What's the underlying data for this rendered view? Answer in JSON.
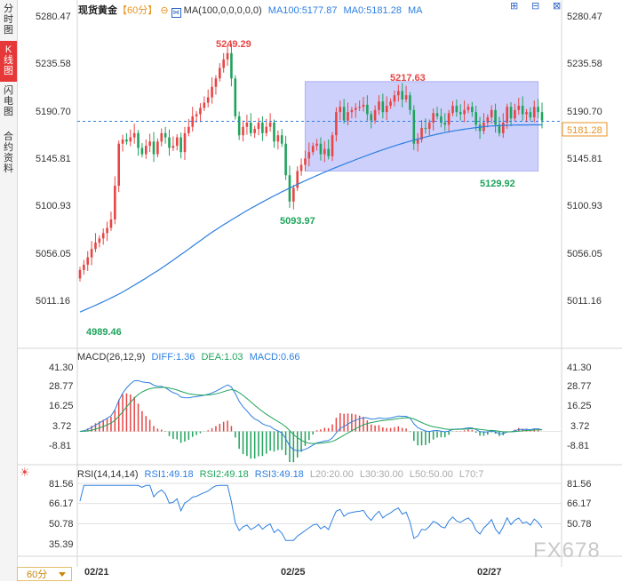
{
  "sidebar": {
    "tabs": [
      {
        "label": "分时图",
        "active": false
      },
      {
        "label": "K线图",
        "active": true
      },
      {
        "label": "闪电图",
        "active": false
      },
      {
        "label": "合约资料",
        "active": false
      }
    ],
    "period_button": "60分"
  },
  "header": {
    "symbol": "现货黄金",
    "period": "【60分】",
    "ma_label": "MA(100,0,0,0,0,0)",
    "ma100": "MA100:5177.87",
    "ma0": "MA0:5181.28",
    "ma_extra": "MA"
  },
  "toolbar_icons": [
    "grid-icon",
    "collapse-icon",
    "minimize-icon",
    "close-icon"
  ],
  "macd_header": {
    "label": "MACD(26,12,9)",
    "diff": "DIFF:1.36",
    "dea": "DEA:1.03",
    "macd": "MACD:0.66"
  },
  "rsi_header": {
    "label": "RSI(14,14,14)",
    "rsi1": "RSI1:49.18",
    "rsi2": "RSI2:49.18",
    "rsi3": "RSI3:49.18",
    "l20": "L20:20.00",
    "l30": "L30:30.00",
    "l50": "L50:50.00",
    "l70": "L70:7"
  },
  "price_badge": "5181.28",
  "annotations": {
    "high": "5249.29",
    "high2": "5217.63",
    "low_start": "4989.46",
    "low_mid": "5093.97",
    "low_end": "5129.92"
  },
  "watermark": "FX678",
  "colors": {
    "up": "#e84545",
    "down": "#1fa35c",
    "ma100": "#2d7fe0",
    "box": "#cdd0fb",
    "dotted": "#2d7fe0",
    "badge": "#e8921e"
  },
  "chart_data": [
    {
      "type": "candlestick",
      "title": "",
      "y_ticks": [
        "5280.47",
        "5235.58",
        "5190.70",
        "5145.81",
        "5100.93",
        "5056.05",
        "5011.16"
      ],
      "ylim": [
        4980,
        5282
      ],
      "x_ticks": [
        "02/21",
        "02/25",
        "02/27"
      ],
      "current_price": 5181.28,
      "close": [
        5040,
        5045,
        5052,
        5060,
        5066,
        5070,
        5075,
        5080,
        5088,
        5120,
        5160,
        5164,
        5162,
        5166,
        5170,
        5156,
        5150,
        5158,
        5162,
        5150,
        5162,
        5170,
        5166,
        5156,
        5158,
        5166,
        5152,
        5170,
        5176,
        5186,
        5188,
        5194,
        5199,
        5204,
        5214,
        5222,
        5232,
        5240,
        5246,
        5222,
        5186,
        5168,
        5176,
        5180,
        5170,
        5174,
        5180,
        5170,
        5176,
        5180,
        5162,
        5168,
        5160,
        5130,
        5105,
        5118,
        5134,
        5140,
        5146,
        5152,
        5158,
        5160,
        5150,
        5155,
        5148,
        5168,
        5190,
        5195,
        5182,
        5190,
        5192,
        5194,
        5195,
        5197,
        5188,
        5182,
        5192,
        5200,
        5190,
        5196,
        5200,
        5206,
        5210,
        5202,
        5206,
        5192,
        5160,
        5164,
        5175,
        5174,
        5180,
        5189,
        5186,
        5180,
        5178,
        5189,
        5196,
        5190,
        5188,
        5192,
        5195,
        5190,
        5178,
        5172,
        5180,
        5185,
        5192,
        5178,
        5170,
        5180,
        5195,
        5184,
        5192,
        5196,
        5188,
        5190,
        5185,
        5195,
        5190,
        5182
      ],
      "ma100": [
        5000,
        5001.6,
        5003.2,
        5004.8,
        5006.4,
        5008.1,
        5009.8,
        5011.6,
        5013.4,
        5015.2,
        5017.1,
        5019.1,
        5021.2,
        5023.4,
        5025.6,
        5027.8,
        5030.0,
        5032.3,
        5034.7,
        5037.0,
        5039.3,
        5041.7,
        5044.2,
        5046.8,
        5049.4,
        5052.0,
        5054.6,
        5057.2,
        5059.9,
        5062.6,
        5065.3,
        5067.9,
        5070.6,
        5073.2,
        5075.8,
        5078.2,
        5080.6,
        5083.0,
        5085.3,
        5087.6,
        5089.8,
        5092.0,
        5094.2,
        5096.4,
        5098.5,
        5100.5,
        5102.6,
        5104.6,
        5106.6,
        5108.5,
        5110.4,
        5112.3,
        5114.2,
        5116.0,
        5117.8,
        5119.6,
        5121.4,
        5123.1,
        5124.8,
        5126.5,
        5128.1,
        5129.7,
        5131.3,
        5132.9,
        5134.4,
        5136.0,
        5137.5,
        5139.0,
        5140.5,
        5141.9,
        5143.3,
        5144.8,
        5146.2,
        5147.6,
        5148.9,
        5150.3,
        5151.6,
        5152.9,
        5154.2,
        5155.4,
        5156.7,
        5157.9,
        5159.1,
        5160.2,
        5161.3,
        5162.4,
        5163.4,
        5164.4,
        5165.4,
        5166.3,
        5167.3,
        5168.1,
        5169.0,
        5169.8,
        5170.6,
        5171.3,
        5172.0,
        5172.6,
        5173.2,
        5173.8,
        5174.3,
        5174.8,
        5175.3,
        5175.7,
        5176.1,
        5176.5,
        5176.8,
        5177.0,
        5177.2,
        5177.4,
        5177.5,
        5177.6,
        5177.7,
        5177.8,
        5177.8,
        5177.85,
        5177.87,
        5177.87,
        5177.87,
        5177.87
      ],
      "box": {
        "y_top": 5219,
        "y_bottom": 5134
      }
    },
    {
      "type": "macd",
      "y_ticks": [
        "41.30",
        "28.77",
        "16.25",
        "3.72",
        "-8.81"
      ],
      "ylim": [
        -16,
        46
      ],
      "diff": 1.36,
      "dea": 1.03,
      "macd": 0.66
    },
    {
      "type": "line",
      "title": "",
      "y_ticks": [
        "81.56",
        "66.17",
        "50.78",
        "35.39"
      ],
      "ylim": [
        30,
        88
      ]
    }
  ]
}
